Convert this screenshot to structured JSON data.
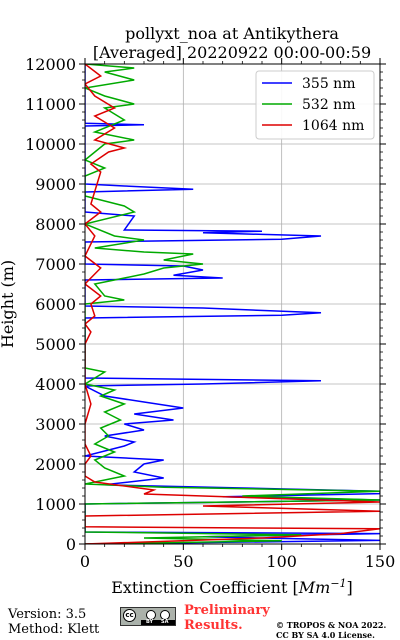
{
  "chart_data": {
    "type": "line",
    "title_line1": "pollyxt_noa at Antikythera",
    "title_line2": "[Averaged] 20220922 00:00-00:59",
    "xlabel_prefix": "Extinction Coefficient [",
    "xlabel_unit": "Mm",
    "xlabel_exp": "−1",
    "xlabel_suffix": "]",
    "ylabel": "Height (m)",
    "xlim": [
      0,
      150
    ],
    "ylim": [
      0,
      12000
    ],
    "xticks": [
      0,
      50,
      100,
      150
    ],
    "yticks": [
      0,
      1000,
      2000,
      3000,
      4000,
      5000,
      6000,
      7000,
      8000,
      9000,
      10000,
      11000,
      12000
    ],
    "grid": true,
    "legend_position": "top-right",
    "series": [
      {
        "name": "355 nm",
        "color": "#0000ff",
        "points": [
          [
            0,
            0
          ],
          [
            150,
            90
          ],
          [
            60,
            180
          ],
          [
            150,
            260
          ],
          [
            0,
            300
          ],
          [
            0,
            1000
          ],
          [
            150,
            1100
          ],
          [
            70,
            1180
          ],
          [
            150,
            1260
          ],
          [
            150,
            1320
          ],
          [
            10,
            1480
          ],
          [
            40,
            1650
          ],
          [
            25,
            1800
          ],
          [
            30,
            2000
          ],
          [
            40,
            2100
          ],
          [
            0,
            2200
          ],
          [
            20,
            2450
          ],
          [
            25,
            2550
          ],
          [
            10,
            2700
          ],
          [
            30,
            2850
          ],
          [
            20,
            3000
          ],
          [
            45,
            3100
          ],
          [
            25,
            3250
          ],
          [
            50,
            3400
          ],
          [
            30,
            3550
          ],
          [
            10,
            3700
          ],
          [
            0,
            3950
          ],
          [
            60,
            4000
          ],
          [
            120,
            4080
          ],
          [
            0,
            4150
          ],
          [
            0,
            5650
          ],
          [
            100,
            5720
          ],
          [
            120,
            5780
          ],
          [
            60,
            5900
          ],
          [
            0,
            5950
          ],
          [
            0,
            6600
          ],
          [
            70,
            6650
          ],
          [
            45,
            6720
          ],
          [
            60,
            6850
          ],
          [
            50,
            6950
          ],
          [
            0,
            7000
          ],
          [
            0,
            7550
          ],
          [
            100,
            7620
          ],
          [
            120,
            7700
          ],
          [
            60,
            7780
          ],
          [
            90,
            7820
          ],
          [
            20,
            7850
          ],
          [
            25,
            8200
          ],
          [
            0,
            8300
          ],
          [
            0,
            8800
          ],
          [
            55,
            8870
          ],
          [
            20,
            8950
          ],
          [
            0,
            9000
          ],
          [
            0,
            10450
          ],
          [
            30,
            10480
          ],
          [
            0,
            10520
          ],
          [
            0,
            12000
          ]
        ]
      },
      {
        "name": "532 nm",
        "color": "#00aa00",
        "points": [
          [
            0,
            0
          ],
          [
            100,
            80
          ],
          [
            30,
            150
          ],
          [
            110,
            230
          ],
          [
            0,
            300
          ],
          [
            0,
            1000
          ],
          [
            150,
            1100
          ],
          [
            80,
            1200
          ],
          [
            150,
            1320
          ],
          [
            40,
            1420
          ],
          [
            0,
            1500
          ],
          [
            20,
            1700
          ],
          [
            10,
            1900
          ],
          [
            5,
            2100
          ],
          [
            15,
            2300
          ],
          [
            5,
            2500
          ],
          [
            12,
            2700
          ],
          [
            8,
            2900
          ],
          [
            18,
            3100
          ],
          [
            10,
            3300
          ],
          [
            20,
            3500
          ],
          [
            8,
            3700
          ],
          [
            15,
            3850
          ],
          [
            0,
            4000
          ],
          [
            10,
            4300
          ],
          [
            0,
            4400
          ],
          [
            0,
            6000
          ],
          [
            20,
            6100
          ],
          [
            10,
            6200
          ],
          [
            5,
            6500
          ],
          [
            30,
            6750
          ],
          [
            40,
            6900
          ],
          [
            60,
            7000
          ],
          [
            40,
            7100
          ],
          [
            55,
            7250
          ],
          [
            30,
            7300
          ],
          [
            5,
            7400
          ],
          [
            30,
            7600
          ],
          [
            15,
            7700
          ],
          [
            0,
            8000
          ],
          [
            25,
            8300
          ],
          [
            20,
            8450
          ],
          [
            0,
            8700
          ],
          [
            0,
            9200
          ],
          [
            10,
            9400
          ],
          [
            0,
            9600
          ],
          [
            10,
            10000
          ],
          [
            25,
            10100
          ],
          [
            5,
            10300
          ],
          [
            20,
            10600
          ],
          [
            10,
            10900
          ],
          [
            25,
            11000
          ],
          [
            10,
            11200
          ],
          [
            0,
            11400
          ],
          [
            25,
            11600
          ],
          [
            10,
            11800
          ],
          [
            25,
            11900
          ],
          [
            0,
            12000
          ]
        ]
      },
      {
        "name": "1064 nm",
        "color": "#dd0000",
        "points": [
          [
            0,
            0
          ],
          [
            90,
            150
          ],
          [
            130,
            260
          ],
          [
            150,
            380
          ],
          [
            0,
            430
          ],
          [
            0,
            700
          ],
          [
            150,
            820
          ],
          [
            60,
            950
          ],
          [
            150,
            1050
          ],
          [
            30,
            1250
          ],
          [
            35,
            1350
          ],
          [
            5,
            1550
          ],
          [
            0,
            1700
          ],
          [
            0,
            2000
          ],
          [
            3,
            2200
          ],
          [
            0,
            2500
          ],
          [
            0,
            3000
          ],
          [
            3,
            3500
          ],
          [
            0,
            4000
          ],
          [
            0,
            5000
          ],
          [
            3,
            5300
          ],
          [
            0,
            5500
          ],
          [
            5,
            5700
          ],
          [
            3,
            6000
          ],
          [
            8,
            6200
          ],
          [
            0,
            6500
          ],
          [
            8,
            6900
          ],
          [
            0,
            7200
          ],
          [
            5,
            7700
          ],
          [
            0,
            8000
          ],
          [
            8,
            8300
          ],
          [
            3,
            8500
          ],
          [
            8,
            9300
          ],
          [
            3,
            9500
          ],
          [
            12,
            9800
          ],
          [
            20,
            9900
          ],
          [
            5,
            10100
          ],
          [
            15,
            10400
          ],
          [
            5,
            10700
          ],
          [
            15,
            10900
          ],
          [
            5,
            11200
          ],
          [
            0,
            11500
          ],
          [
            8,
            11700
          ],
          [
            0,
            12000
          ]
        ]
      }
    ]
  },
  "footer": {
    "version": "Version: 3.5",
    "method": "Method: Klett",
    "prelim_line1": "Preliminary",
    "prelim_line2": "Results.",
    "copyright_line1": "© TROPOS & NOA 2022.",
    "copyright_line2": "CC BY SA 4.0 License.",
    "badge_cc": "cc",
    "badge_by": "BY",
    "badge_sa": "SA"
  }
}
